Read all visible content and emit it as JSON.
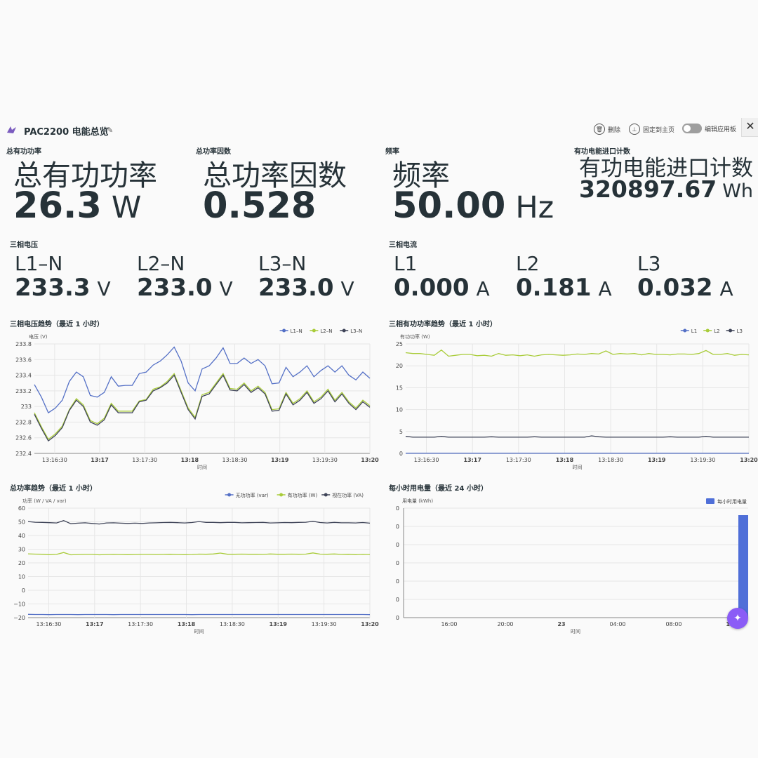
{
  "header": {
    "title": "PAC2200 电能总览",
    "delete_label": "删除",
    "pin_label": "固定到主页",
    "edit_panel_label": "编辑应用板"
  },
  "stats": {
    "total_power": {
      "label": "总有功功率",
      "name": "总有功功率",
      "value": "26.3",
      "unit": "W"
    },
    "power_factor": {
      "label": "总功率因数",
      "name": "总功率因数",
      "value": "0.528",
      "unit": ""
    },
    "frequency": {
      "label": "频率",
      "name": "频率",
      "value": "50.00",
      "unit": "Hz"
    },
    "energy_import": {
      "label": "有功电能进口计数",
      "name": "有功电能进口计数",
      "value": "320897.67",
      "unit": "Wh"
    }
  },
  "voltage": {
    "label": "三相电压",
    "items": [
      {
        "name": "L1–N",
        "value": "233.3",
        "unit": "V"
      },
      {
        "name": "L2–N",
        "value": "233.0",
        "unit": "V"
      },
      {
        "name": "L3–N",
        "value": "233.0",
        "unit": "V"
      }
    ]
  },
  "current": {
    "label": "三相电流",
    "items": [
      {
        "name": "L1",
        "value": "0.000",
        "unit": "A"
      },
      {
        "name": "L2",
        "value": "0.181",
        "unit": "A"
      },
      {
        "name": "L3",
        "value": "0.032",
        "unit": "A"
      }
    ]
  },
  "colors": {
    "blue": "#5470c6",
    "green": "#a9cc3a",
    "dark": "#3f4458"
  },
  "chart_data": [
    {
      "id": "voltage",
      "type": "line",
      "title": "三相电压趋势（最近 1 小时）",
      "ylabel": "电压 (V)",
      "xlabel": "时间",
      "ylim": [
        232.4,
        233.8
      ],
      "yticks": [
        "233.8",
        "233.6",
        "233.4",
        "233.2",
        "233",
        "232.8",
        "232.6",
        "232.4"
      ],
      "xticks": [
        "13:16:30",
        "13:17",
        "13:17:30",
        "13:18",
        "13:18:30",
        "13:19",
        "13:19:30",
        "13:20"
      ],
      "grid": true,
      "legend": "top-right",
      "series": [
        {
          "name": "L1–N",
          "color": "#5470c6",
          "values": [
            233.28,
            233.12,
            232.92,
            232.98,
            233.08,
            233.32,
            233.44,
            233.38,
            233.14,
            233.12,
            233.18,
            233.38,
            233.26,
            233.27,
            233.27,
            233.42,
            233.44,
            233.53,
            233.58,
            233.66,
            233.76,
            233.58,
            233.3,
            233.2,
            233.48,
            233.52,
            233.62,
            233.75,
            233.55,
            233.55,
            233.62,
            233.55,
            233.6,
            233.52,
            233.29,
            233.3,
            233.5,
            233.38,
            233.44,
            233.52,
            233.38,
            233.46,
            233.52,
            233.44,
            233.52,
            233.4,
            233.34,
            233.44,
            233.36
          ]
        },
        {
          "name": "L2–N",
          "color": "#a9cc3a",
          "values": [
            232.92,
            232.74,
            232.58,
            232.65,
            232.75,
            232.96,
            233.1,
            233.02,
            232.82,
            232.78,
            232.85,
            233.04,
            232.94,
            232.94,
            232.94,
            233.07,
            233.09,
            233.22,
            233.25,
            233.32,
            233.42,
            233.2,
            232.98,
            232.86,
            233.15,
            233.18,
            233.3,
            233.42,
            233.23,
            233.22,
            233.3,
            233.2,
            233.26,
            233.18,
            232.96,
            232.97,
            233.18,
            233.04,
            233.1,
            233.2,
            233.06,
            233.12,
            233.22,
            233.08,
            233.18,
            233.06,
            232.98,
            233.08,
            233.01
          ]
        },
        {
          "name": "L3–N",
          "color": "#3f4458",
          "values": [
            232.9,
            232.72,
            232.56,
            232.63,
            232.73,
            232.95,
            233.08,
            233.0,
            232.8,
            232.76,
            232.83,
            233.02,
            232.92,
            232.92,
            232.92,
            233.06,
            233.08,
            233.2,
            233.24,
            233.3,
            233.4,
            233.18,
            232.96,
            232.84,
            233.13,
            233.16,
            233.28,
            233.4,
            233.21,
            233.2,
            233.28,
            233.18,
            233.24,
            233.16,
            232.94,
            232.95,
            233.16,
            233.02,
            233.08,
            233.18,
            233.04,
            233.1,
            233.2,
            233.06,
            233.16,
            233.04,
            232.96,
            233.06,
            232.99
          ]
        }
      ]
    },
    {
      "id": "phase_power",
      "type": "line",
      "title": "三相有功功率趋势（最近 1 小时）",
      "ylabel": "有功功率 (W)",
      "xlabel": "时间",
      "ylim": [
        0,
        25
      ],
      "yticks": [
        "25",
        "20",
        "15",
        "10",
        "5",
        "0"
      ],
      "xticks": [
        "13:16:30",
        "13:17",
        "13:17:30",
        "13:18",
        "13:18:30",
        "13:19",
        "13:19:30",
        "13:20"
      ],
      "grid": true,
      "legend": "top-right",
      "series": [
        {
          "name": "L1",
          "color": "#5470c6",
          "values": [
            0.05,
            0.05,
            0.05,
            0.05,
            0.05,
            0.05,
            0.05,
            0.05,
            0.05,
            0.05,
            0.05,
            0.05,
            0.05,
            0.05,
            0.05,
            0.05,
            0.05,
            0.05,
            0.05,
            0.05,
            0.05,
            0.05,
            0.05,
            0.05,
            0.05,
            0.05,
            0.05,
            0.05,
            0.05,
            0.05,
            0.05,
            0.05,
            0.05,
            0.05,
            0.05,
            0.05,
            0.05,
            0.05,
            0.05,
            0.05,
            0.05,
            0.05,
            0.05,
            0.05,
            0.05,
            0.05,
            0.05,
            0.05,
            0.05
          ]
        },
        {
          "name": "L2",
          "color": "#a9cc3a",
          "values": [
            23.0,
            22.8,
            22.8,
            22.6,
            22.4,
            23.6,
            22.2,
            22.4,
            22.6,
            22.6,
            22.3,
            22.4,
            22.2,
            22.8,
            22.4,
            22.5,
            22.3,
            22.5,
            22.2,
            22.5,
            22.6,
            22.5,
            22.4,
            22.5,
            22.7,
            22.6,
            22.8,
            22.7,
            23.4,
            22.6,
            22.8,
            22.7,
            22.8,
            22.5,
            22.8,
            22.6,
            22.6,
            22.5,
            22.7,
            22.7,
            22.6,
            22.8,
            23.5,
            22.6,
            22.6,
            22.8,
            22.4,
            22.6,
            22.5
          ]
        },
        {
          "name": "L3",
          "color": "#3f4458",
          "values": [
            3.9,
            3.7,
            3.7,
            3.7,
            3.7,
            3.9,
            3.7,
            3.7,
            3.7,
            3.7,
            3.7,
            3.7,
            3.8,
            3.7,
            3.7,
            3.7,
            3.7,
            3.7,
            3.8,
            3.7,
            3.7,
            3.7,
            3.7,
            3.7,
            3.7,
            3.7,
            4.0,
            3.8,
            3.7,
            3.7,
            3.7,
            3.7,
            3.7,
            3.7,
            3.7,
            3.7,
            3.7,
            3.8,
            3.7,
            3.7,
            3.7,
            3.7,
            3.9,
            3.7,
            3.7,
            3.7,
            3.7,
            3.7,
            3.7
          ]
        }
      ]
    },
    {
      "id": "total_power",
      "type": "line",
      "title": "总功率趋势（最近 1 小时）",
      "ylabel": "功率 (W / VA / var)",
      "xlabel": "时间",
      "ylim": [
        -20,
        60
      ],
      "yticks": [
        "60",
        "50",
        "40",
        "30",
        "20",
        "10",
        "0",
        "−10",
        "−20"
      ],
      "xticks": [
        "13:16:30",
        "13:17",
        "13:17:30",
        "13:18",
        "13:18:30",
        "13:19",
        "13:19:30",
        "13:20"
      ],
      "grid": true,
      "legend": "top-right",
      "series": [
        {
          "name": "无功功率 (var)",
          "color": "#5470c6",
          "values": [
            -17.6,
            -17.7,
            -17.7,
            -17.8,
            -17.7,
            -17.7,
            -17.7,
            -17.8,
            -17.7,
            -17.7,
            -17.7,
            -17.7,
            -17.8,
            -17.7,
            -17.7,
            -17.7,
            -17.7,
            -17.7,
            -17.7,
            -17.7,
            -17.7,
            -17.7,
            -17.7,
            -17.8,
            -17.7,
            -17.7,
            -17.7,
            -17.7,
            -17.7,
            -17.7,
            -17.7,
            -17.7,
            -17.7,
            -17.7,
            -17.7,
            -17.7,
            -17.7,
            -17.7,
            -17.7,
            -17.7,
            -17.7,
            -17.7,
            -17.7,
            -17.7,
            -17.7,
            -17.7,
            -17.7,
            -17.7,
            -17.8
          ]
        },
        {
          "name": "有功功率 (W)",
          "color": "#a9cc3a",
          "values": [
            26.6,
            26.4,
            26.3,
            26.0,
            26.2,
            27.6,
            25.9,
            26.1,
            26.2,
            26.2,
            25.9,
            26.1,
            26.2,
            26.1,
            26.0,
            26.1,
            26.2,
            26.2,
            26.1,
            26.2,
            26.3,
            26.1,
            26.0,
            26.1,
            26.4,
            26.3,
            26.5,
            27.2,
            26.3,
            26.3,
            26.4,
            26.3,
            26.3,
            26.2,
            26.5,
            26.3,
            26.3,
            26.4,
            26.3,
            26.4,
            27.3,
            26.4,
            26.3,
            26.5,
            26.2,
            26.3,
            26.0,
            26.2,
            26.1
          ]
        },
        {
          "name": "视在功率 (VA)",
          "color": "#3f4458",
          "values": [
            50.2,
            49.7,
            49.6,
            49.4,
            49.2,
            50.9,
            48.6,
            49.0,
            49.3,
            48.8,
            48.4,
            49.2,
            49.3,
            49.0,
            48.8,
            49.0,
            48.8,
            49.2,
            49.3,
            49.5,
            49.6,
            49.4,
            49.2,
            49.5,
            50.2,
            49.6,
            49.6,
            49.4,
            49.6,
            49.6,
            49.3,
            49.4,
            49.5,
            49.6,
            49.2,
            49.3,
            49.5,
            49.4,
            49.6,
            49.7,
            50.4,
            49.5,
            49.2,
            49.6,
            49.3,
            49.3,
            49.2,
            49.5,
            49.0
          ]
        }
      ]
    },
    {
      "id": "hourly_energy",
      "type": "bar",
      "title": "每小时用电量（最近 24 小时）",
      "ylabel": "用电量 (kWh)",
      "xlabel": "时间",
      "yticks": [
        "0",
        "0",
        "0",
        "0",
        "0",
        "0",
        "0"
      ],
      "xticks": [
        "16:00",
        "20:00",
        "23",
        "04:00",
        "08:00",
        "12"
      ],
      "grid": true,
      "legend": "top-right",
      "series": [
        {
          "name": "每小时用电量",
          "color": "#4f6fd8",
          "values": [
            0,
            0,
            0,
            0,
            0,
            0,
            0,
            0,
            0,
            0,
            0,
            0,
            0,
            0,
            0,
            0,
            0,
            0,
            0,
            0,
            0,
            0,
            0,
            0.006
          ]
        }
      ]
    }
  ]
}
